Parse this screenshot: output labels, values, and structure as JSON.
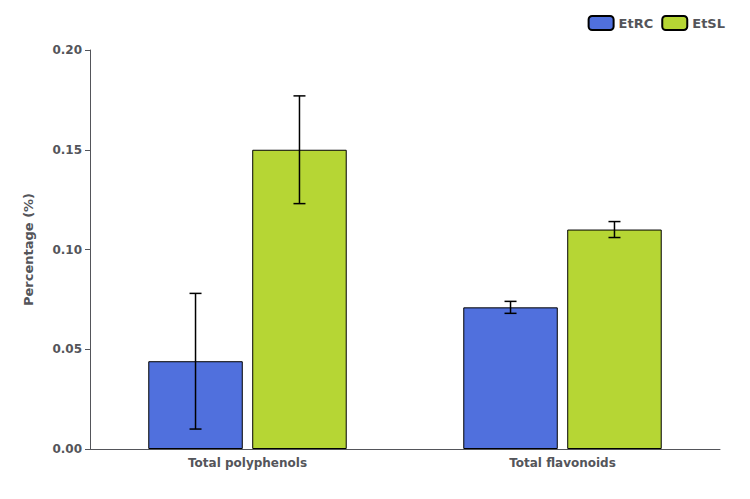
{
  "chart_data": {
    "type": "bar",
    "categories": [
      "Total polyphenols",
      "Total flavonoids"
    ],
    "series": [
      {
        "name": "EtRC",
        "values": [
          0.044,
          0.071
        ],
        "errors": [
          0.034,
          0.003
        ]
      },
      {
        "name": "EtSL",
        "values": [
          0.15,
          0.11
        ],
        "errors": [
          0.027,
          0.004
        ]
      }
    ],
    "ylabel": "Percentage (%)",
    "ylim": [
      0.0,
      0.2
    ],
    "yticks": [
      {
        "value": 0,
        "label": "0.00"
      },
      0.05,
      {
        "value": 0.1,
        "label": "0.10"
      },
      0.15,
      {
        "value": 0.2,
        "label": "0.20"
      }
    ],
    "grid": false,
    "legend": "upper right"
  }
}
